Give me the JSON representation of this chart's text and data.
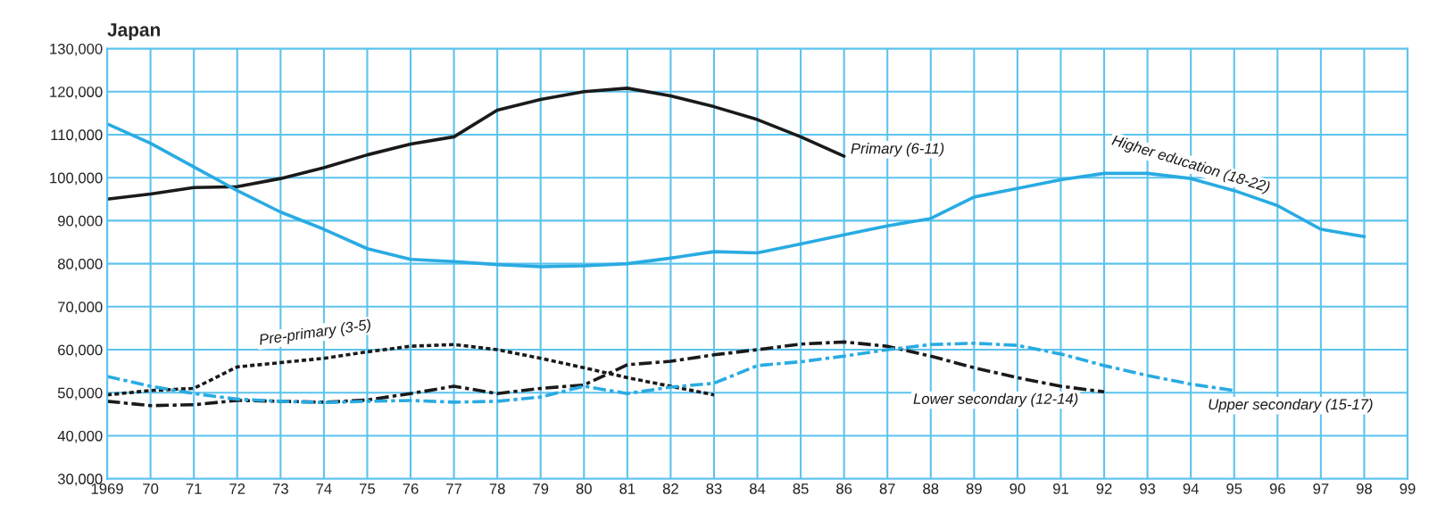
{
  "chart_data": {
    "type": "line",
    "title": "Japan",
    "x": [
      1969,
      1970,
      1971,
      1972,
      1973,
      1974,
      1975,
      1976,
      1977,
      1978,
      1979,
      1980,
      1981,
      1982,
      1983,
      1984,
      1985,
      1986,
      1987,
      1988,
      1989,
      1990,
      1991,
      1992,
      1993,
      1994,
      1995,
      1996,
      1997,
      1998
    ],
    "series": [
      {
        "name": "Primary (6-11)",
        "color": "#1a1a1a",
        "line_style": "solid",
        "values": [
          95000,
          96200,
          97700,
          97900,
          99800,
          102300,
          105300,
          107800,
          109500,
          115700,
          118200,
          120000,
          120800,
          119000,
          116500,
          113500,
          109500,
          105000,
          null,
          null,
          null,
          null,
          null,
          null,
          null,
          null,
          null,
          null,
          null,
          null
        ]
      },
      {
        "name": "Higher education (18-22)",
        "color": "#29abe2",
        "line_style": "solid",
        "values": [
          112500,
          108000,
          102500,
          97000,
          92000,
          88000,
          83500,
          81000,
          80500,
          79800,
          79300,
          79500,
          80000,
          81300,
          82800,
          82500,
          84600,
          86700,
          88800,
          90500,
          95500,
          97500,
          99500,
          101000,
          101000,
          99800,
          97000,
          93500,
          88000,
          86300
        ]
      },
      {
        "name": "Pre-primary (3-5)",
        "color": "#1a1a1a",
        "line_style": "dotted",
        "values": [
          49500,
          50500,
          51000,
          56000,
          57000,
          58000,
          59500,
          60800,
          61200,
          60000,
          58000,
          55800,
          53500,
          51500,
          49500,
          null,
          null,
          null,
          null,
          null,
          null,
          null,
          null,
          null,
          null,
          null,
          null,
          null,
          null,
          null
        ]
      },
      {
        "name": "Lower secondary (12-14)",
        "color": "#1a1a1a",
        "line_style": "dashed",
        "values": [
          48000,
          47000,
          47200,
          48200,
          48000,
          47800,
          48300,
          49800,
          51500,
          49800,
          51000,
          51800,
          56500,
          57300,
          58800,
          60000,
          61300,
          61800,
          60800,
          58500,
          55800,
          53500,
          51500,
          50200,
          null,
          null,
          null,
          null,
          null,
          null
        ]
      },
      {
        "name": "Upper secondary (15-17)",
        "color": "#29abe2",
        "line_style": "dashed",
        "values": [
          53800,
          51500,
          49800,
          48500,
          48000,
          47700,
          48000,
          48200,
          47800,
          48000,
          49000,
          51500,
          49800,
          51300,
          52200,
          56300,
          57200,
          58500,
          60000,
          61200,
          61500,
          61000,
          59000,
          56300,
          54000,
          52000,
          50500,
          null,
          null,
          null
        ]
      }
    ],
    "xlim": [
      1969,
      1999
    ],
    "xticks": [
      {
        "value": 1969,
        "label": "1969"
      },
      {
        "value": 1970,
        "label": "70"
      },
      {
        "value": 1971,
        "label": "71"
      },
      {
        "value": 1972,
        "label": "72"
      },
      {
        "value": 1973,
        "label": "73"
      },
      {
        "value": 1974,
        "label": "74"
      },
      {
        "value": 1975,
        "label": "75"
      },
      {
        "value": 1976,
        "label": "76"
      },
      {
        "value": 1977,
        "label": "77"
      },
      {
        "value": 1978,
        "label": "78"
      },
      {
        "value": 1979,
        "label": "79"
      },
      {
        "value": 1980,
        "label": "80"
      },
      {
        "value": 1981,
        "label": "81"
      },
      {
        "value": 1982,
        "label": "82"
      },
      {
        "value": 1983,
        "label": "83"
      },
      {
        "value": 1984,
        "label": "84"
      },
      {
        "value": 1985,
        "label": "85"
      },
      {
        "value": 1986,
        "label": "86"
      },
      {
        "value": 1987,
        "label": "87"
      },
      {
        "value": 1988,
        "label": "88"
      },
      {
        "value": 1989,
        "label": "89"
      },
      {
        "value": 1990,
        "label": "90"
      },
      {
        "value": 1991,
        "label": "91"
      },
      {
        "value": 1992,
        "label": "92"
      },
      {
        "value": 1993,
        "label": "93"
      },
      {
        "value": 1994,
        "label": "94"
      },
      {
        "value": 1995,
        "label": "95"
      },
      {
        "value": 1996,
        "label": "96"
      },
      {
        "value": 1997,
        "label": "97"
      },
      {
        "value": 1998,
        "label": "98"
      },
      {
        "value": 1999,
        "label": "99"
      }
    ],
    "ylim": [
      30000,
      130000
    ],
    "yticks": [
      {
        "value": 30000,
        "label": "30,000"
      },
      {
        "value": 40000,
        "label": "40,000"
      },
      {
        "value": 50000,
        "label": "50,000"
      },
      {
        "value": 60000,
        "label": "60,000"
      },
      {
        "value": 70000,
        "label": "70,000"
      },
      {
        "value": 80000,
        "label": "80,000"
      },
      {
        "value": 90000,
        "label": "90,000"
      },
      {
        "value": 100000,
        "label": "100,000"
      },
      {
        "value": 110000,
        "label": "110,000"
      },
      {
        "value": 120000,
        "label": "120,000"
      },
      {
        "value": 130000,
        "label": "130,000"
      }
    ],
    "grid": true,
    "legend": false,
    "marker": "none"
  }
}
